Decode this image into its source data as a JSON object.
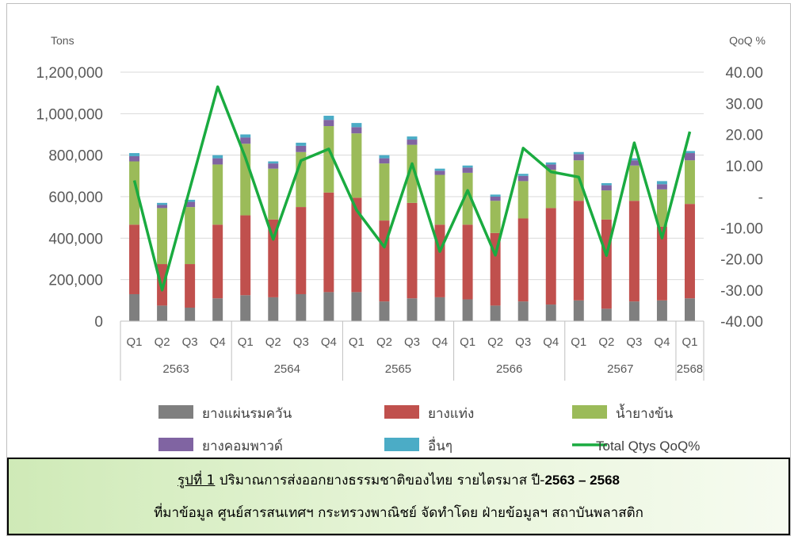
{
  "chart_data": {
    "type": "bar",
    "stacked": true,
    "secondary_type": "line",
    "y_left_label": "Tons",
    "y_right_label": "QoQ %",
    "y_left_range": [
      0,
      1200000
    ],
    "y_left_ticks": [
      "0",
      "200,000",
      "400,000",
      "600,000",
      "800,000",
      "1,000,000",
      "1,200,000"
    ],
    "y_right_range": [
      -40,
      40
    ],
    "y_right_ticks": [
      "-40.00",
      "-30.00",
      "-20.00",
      "-10.00",
      "-",
      "10.00",
      "20.00",
      "30.00",
      "40.00"
    ],
    "grid": true,
    "legend_position": "bottom",
    "categories": [
      "Q1",
      "Q2",
      "Q3",
      "Q4",
      "Q1",
      "Q2",
      "Q3",
      "Q4",
      "Q1",
      "Q2",
      "Q3",
      "Q4",
      "Q1",
      "Q2",
      "Q3",
      "Q4",
      "Q1",
      "Q2",
      "Q3",
      "Q4",
      "Q1"
    ],
    "year_groups": [
      {
        "label": "2563",
        "count": 4
      },
      {
        "label": "2564",
        "count": 4
      },
      {
        "label": "2565",
        "count": 4
      },
      {
        "label": "2566",
        "count": 4
      },
      {
        "label": "2567",
        "count": 4
      },
      {
        "label": "2568",
        "count": 1
      }
    ],
    "series": [
      {
        "name": "ยางแผ่นรมควัน",
        "color": "#7f7f7f",
        "values": [
          130000,
          75000,
          65000,
          110000,
          125000,
          115000,
          130000,
          140000,
          140000,
          95000,
          110000,
          115000,
          105000,
          75000,
          95000,
          80000,
          100000,
          60000,
          95000,
          100000,
          110000
        ]
      },
      {
        "name": "ยางแท่ง",
        "color": "#c0504d",
        "values": [
          335000,
          200000,
          210000,
          355000,
          385000,
          375000,
          420000,
          480000,
          455000,
          390000,
          460000,
          350000,
          360000,
          350000,
          400000,
          465000,
          480000,
          430000,
          485000,
          355000,
          455000
        ]
      },
      {
        "name": "น้ำยางข้น",
        "color": "#9bbb59",
        "values": [
          305000,
          270000,
          275000,
          290000,
          345000,
          245000,
          265000,
          320000,
          310000,
          275000,
          280000,
          240000,
          250000,
          155000,
          180000,
          185000,
          195000,
          140000,
          170000,
          180000,
          210000
        ]
      },
      {
        "name": "ยางคอมพาวด์",
        "color": "#8064a2",
        "values": [
          25000,
          15000,
          25000,
          30000,
          30000,
          25000,
          30000,
          30000,
          30000,
          25000,
          25000,
          20000,
          25000,
          20000,
          25000,
          25000,
          30000,
          25000,
          25000,
          25000,
          35000
        ]
      },
      {
        "name": "อื่นๆ",
        "color": "#4bacc6",
        "values": [
          15000,
          10000,
          10000,
          15000,
          15000,
          10000,
          15000,
          20000,
          20000,
          15000,
          15000,
          10000,
          10000,
          10000,
          10000,
          10000,
          10000,
          10000,
          10000,
          15000,
          10000
        ]
      }
    ],
    "line_series": {
      "name": "Total Qtys QoQ%",
      "color": "#1aab40",
      "values": [
        5.2,
        -30.0,
        2.6,
        35.3,
        12.5,
        -13.7,
        11.6,
        15.3,
        -4.3,
        -16.2,
        10.6,
        -17.6,
        2.0,
        -18.8,
        15.6,
        8.0,
        6.3,
        -18.9,
        17.3,
        -13.3,
        20.9
      ]
    }
  },
  "caption": {
    "fig_label": "รูปที่ 1",
    "line1_text": " ปริมาณการส่งออกยางธรรมชาติของไทย รายไตรมาส ปี-",
    "line1_years": "2563 – 2568",
    "line2": "ที่มาข้อมูล ศูนย์สารสนเทศฯ กระทรวงพาณิชย์ จัดทำโดย ฝ่ายข้อมูลฯ สถาบันพลาสติก"
  }
}
